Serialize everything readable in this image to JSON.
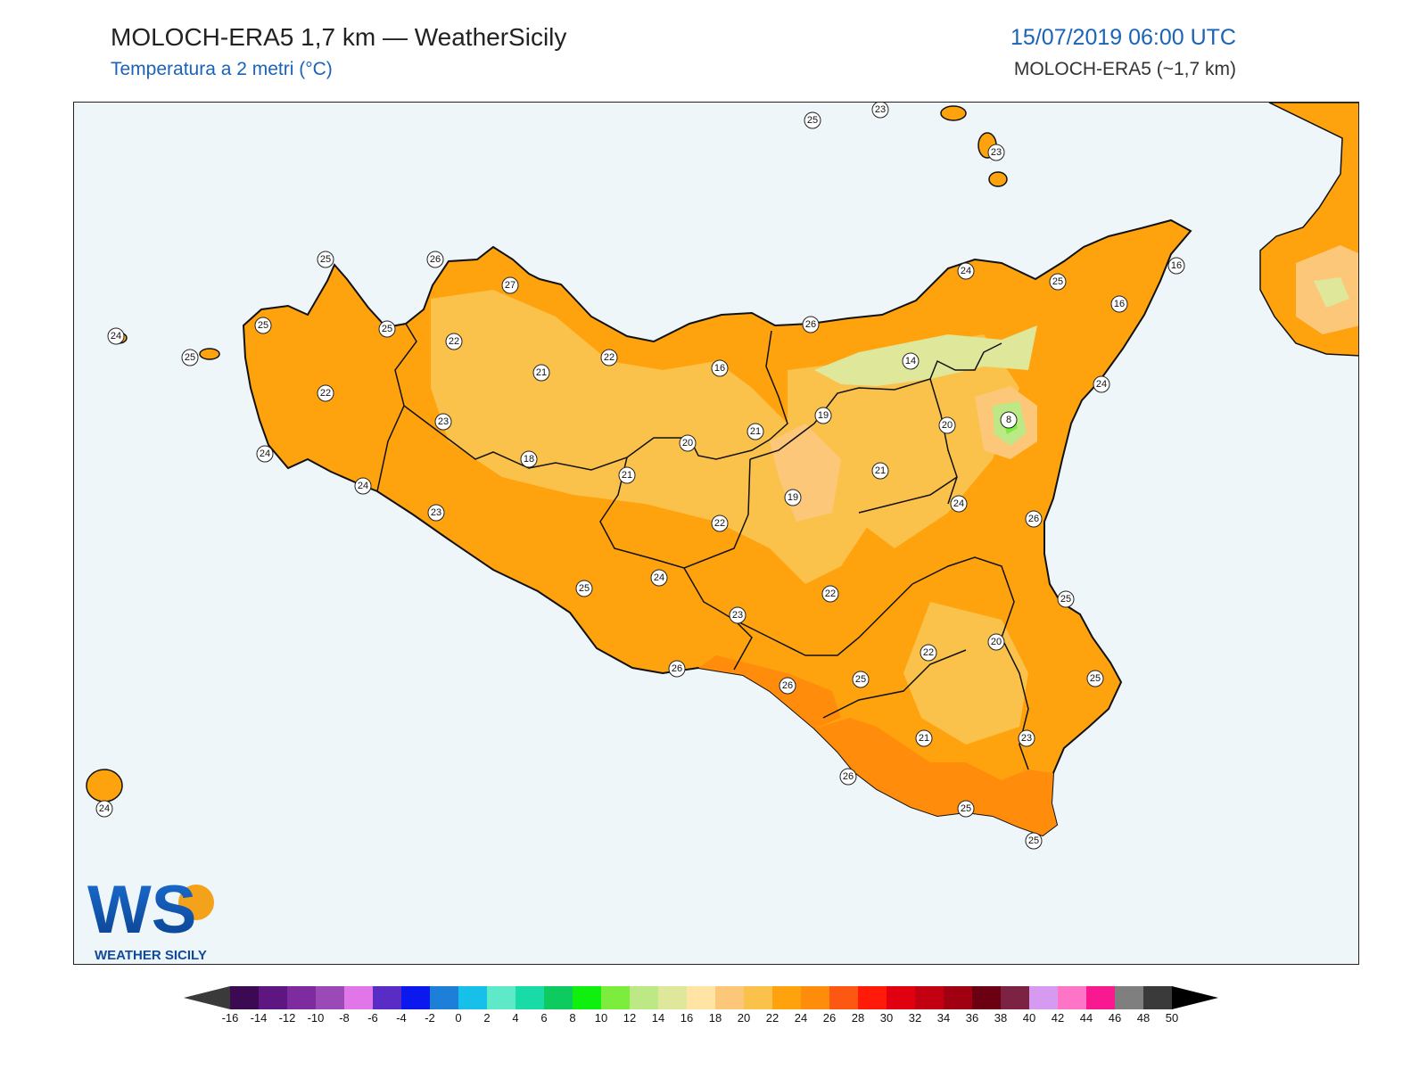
{
  "header": {
    "title": "MOLOCH-ERA5 1,7 km — WeatherSicily",
    "subtitle": "Temperatura a 2 metri (°C)",
    "datetime": "15/07/2019 06:00 UTC",
    "model": "MOLOCH-ERA5 (~1,7 km)"
  },
  "logo": {
    "letters": "WS",
    "text": "WEATHER SICILY"
  },
  "colorbar": {
    "ticks": [
      "-16",
      "-14",
      "-12",
      "-10",
      "-8",
      "-6",
      "-4",
      "-2",
      "0",
      "2",
      "4",
      "6",
      "8",
      "10",
      "12",
      "14",
      "16",
      "18",
      "20",
      "22",
      "24",
      "26",
      "28",
      "30",
      "32",
      "34",
      "36",
      "38",
      "40",
      "42",
      "44",
      "46",
      "48",
      "50"
    ],
    "colors": [
      "#3c0a52",
      "#5e1680",
      "#7d2b9e",
      "#9b49b6",
      "#e076e8",
      "#5a2cc6",
      "#0b19ee",
      "#1e7fd8",
      "#17c0e8",
      "#5ee9c9",
      "#19dba8",
      "#0ecb5f",
      "#0ff00f",
      "#7ded3d",
      "#bce985",
      "#dfe79a",
      "#ffe4a3",
      "#fdc77a",
      "#fbc24b",
      "#fea30e",
      "#ff8c0a",
      "#fd5812",
      "#ff1a0a",
      "#e1000f",
      "#c30012",
      "#a00010",
      "#6b0012",
      "#7c2343",
      "#d79af1",
      "#fe74c6",
      "#f8188f",
      "#7f7f7f",
      "#3a3a3a"
    ],
    "under_color": "#3a3a3a",
    "over_color": "#000000"
  },
  "stations": [
    {
      "v": "25"
    },
    {
      "v": "23"
    },
    {
      "v": "23"
    },
    {
      "v": "25"
    },
    {
      "v": "26"
    },
    {
      "v": "27"
    },
    {
      "v": "24"
    },
    {
      "v": "25"
    },
    {
      "v": "25"
    },
    {
      "v": "25"
    },
    {
      "v": "22"
    },
    {
      "v": "22"
    },
    {
      "v": "21"
    },
    {
      "v": "22"
    },
    {
      "v": "23"
    },
    {
      "v": "24"
    },
    {
      "v": "24"
    },
    {
      "v": "18"
    },
    {
      "v": "23"
    },
    {
      "v": "21"
    },
    {
      "v": "20"
    },
    {
      "v": "21"
    },
    {
      "v": "16"
    },
    {
      "v": "26"
    },
    {
      "v": "24"
    },
    {
      "v": "25"
    },
    {
      "v": "16"
    },
    {
      "v": "16"
    },
    {
      "v": "14"
    },
    {
      "v": "19"
    },
    {
      "v": "20"
    },
    {
      "v": "8"
    },
    {
      "v": "24"
    },
    {
      "v": "21"
    },
    {
      "v": "19"
    },
    {
      "v": "24"
    },
    {
      "v": "26"
    },
    {
      "v": "22"
    },
    {
      "v": "24"
    },
    {
      "v": "22"
    },
    {
      "v": "25"
    },
    {
      "v": "25"
    },
    {
      "v": "23"
    },
    {
      "v": "22"
    },
    {
      "v": "20"
    },
    {
      "v": "26"
    },
    {
      "v": "26"
    },
    {
      "v": "25"
    },
    {
      "v": "25"
    },
    {
      "v": "21"
    },
    {
      "v": "23"
    },
    {
      "v": "26"
    },
    {
      "v": "25"
    },
    {
      "v": "25"
    },
    {
      "v": "24"
    }
  ]
}
